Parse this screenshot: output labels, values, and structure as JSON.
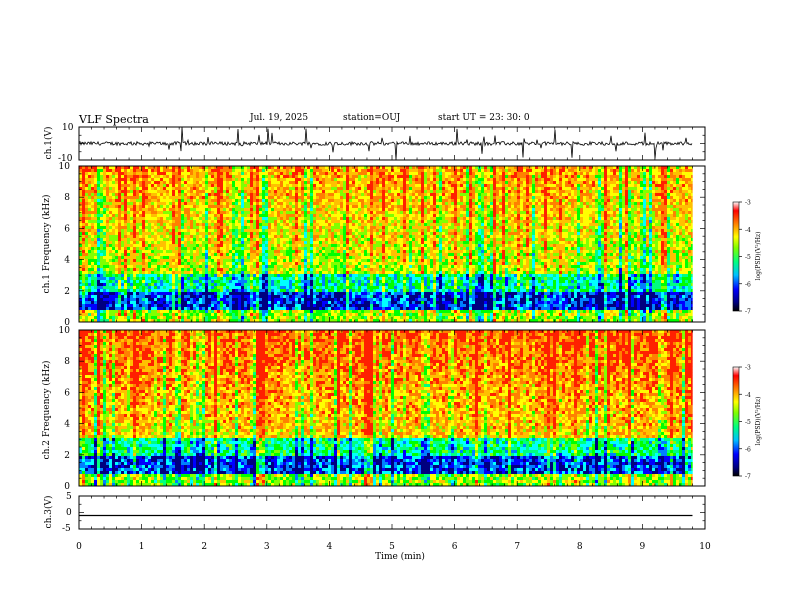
{
  "header": {
    "title": "VLF Spectra",
    "date": "Jul. 19, 2025",
    "station": "station=OUJ",
    "start": "start UT = 23: 30: 0"
  },
  "chart_data": [
    {
      "id": "ch1-waveform",
      "type": "line",
      "ylabel": "ch.1(V)",
      "ylim": [
        -10,
        10
      ],
      "yticks": [
        "10",
        "-10"
      ],
      "xlim": [
        0,
        10
      ],
      "series": [
        {
          "name": "ch.1 voltage",
          "baseline": 0,
          "color": "#000000"
        }
      ]
    },
    {
      "id": "ch1-spectrogram",
      "type": "heatmap",
      "ylabel": "ch.1 Frequency (kHz)",
      "ylim": [
        0,
        10
      ],
      "yticks": [
        "0",
        "2",
        "4",
        "6",
        "8",
        "10"
      ],
      "xlim": [
        0,
        9.8
      ],
      "colorbar": {
        "label": "log(PSD)(V²/Hz)",
        "range": [
          -7,
          -3
        ],
        "ticks": [
          "-3",
          "-4",
          "-5",
          "-6",
          "-7"
        ]
      }
    },
    {
      "id": "ch2-spectrogram",
      "type": "heatmap",
      "ylabel": "ch.2 Frequency (kHz)",
      "ylim": [
        0,
        10
      ],
      "yticks": [
        "0",
        "2",
        "4",
        "6",
        "8",
        "10"
      ],
      "xlim": [
        0,
        9.8
      ],
      "colorbar": {
        "label": "log(PSD)(V²/Hz)",
        "range": [
          -7,
          -3
        ],
        "ticks": [
          "-3",
          "-4",
          "-5",
          "-6",
          "-7"
        ]
      }
    },
    {
      "id": "ch3-waveform",
      "type": "line",
      "ylabel": "ch.3(V)",
      "ylim": [
        -5,
        5
      ],
      "yticks": [
        "5",
        "0",
        "-5"
      ],
      "xlim": [
        0,
        10
      ],
      "series": [
        {
          "name": "ch.3 voltage",
          "constant": -0.9,
          "color": "#000000"
        }
      ]
    }
  ],
  "xaxis": {
    "label": "Time (min)",
    "ticks": [
      "0",
      "1",
      "2",
      "3",
      "4",
      "5",
      "6",
      "7",
      "8",
      "9",
      "10"
    ],
    "range": [
      0,
      10
    ]
  },
  "colors": {
    "scale": [
      "#000080",
      "#0000ff",
      "#0080ff",
      "#00ffff",
      "#00ff80",
      "#00ff00",
      "#80ff00",
      "#ffff00",
      "#ffc000",
      "#ff8000",
      "#ff2000"
    ]
  }
}
